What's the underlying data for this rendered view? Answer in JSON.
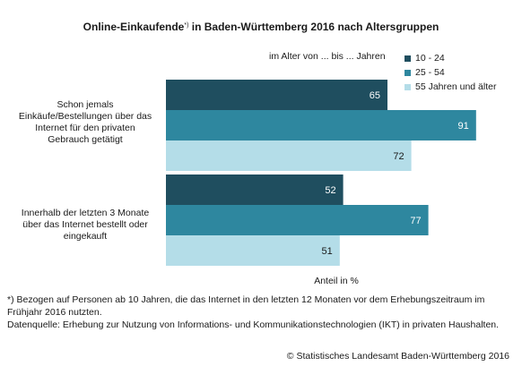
{
  "chart_data": {
    "type": "bar",
    "orientation": "horizontal",
    "title": "Online-Einkaufende",
    "title_marker": "*)",
    "title_suffix": " in Baden-Württemberg 2016 nach Altersgruppen",
    "xlabel": "Anteil in %",
    "ylabel": "",
    "xlim": [
      0,
      100
    ],
    "grid": false,
    "legend_caption": "im Alter von ... bis ... Jahren",
    "legend_position": "top-right",
    "categories": [
      "Schon jemals Einkäufe/Bestellungen über das Internet für den privaten Gebrauch getätigt",
      "Innerhalb der letzten 3 Monate über das Internet bestellt oder eingekauft"
    ],
    "category_lines": [
      [
        "Schon jemals",
        "Einkäufe/Bestellungen über das",
        "Internet für den privaten",
        "Gebrauch getätigt"
      ],
      [
        "Innerhalb der letzten 3 Monate",
        "über das Internet bestellt oder",
        "eingekauft"
      ]
    ],
    "series": [
      {
        "name": "10 - 24",
        "color": "#1f4e5f",
        "label_color": "#ffffff",
        "values": [
          65,
          52
        ]
      },
      {
        "name": "25 - 54",
        "color": "#2e879f",
        "label_color": "#ffffff",
        "values": [
          91,
          77
        ]
      },
      {
        "name": "55 Jahren und älter",
        "color": "#b4dde8",
        "label_color": "#1a1a1a",
        "values": [
          72,
          51
        ]
      }
    ]
  },
  "footnote_lines": [
    "*) Bezogen auf Personen ab 10 Jahren, die das Internet in den letzten 12 Monaten vor dem Erhebungszeitraum im Frühjahr 2016 nutzten.",
    "Datenquelle: Erhebung zur Nutzung von Informations- und Kommunikationstechnologien (IKT) in privaten Haushalten."
  ],
  "copyright": "© Statistisches Landesamt Baden-Württemberg 2016"
}
